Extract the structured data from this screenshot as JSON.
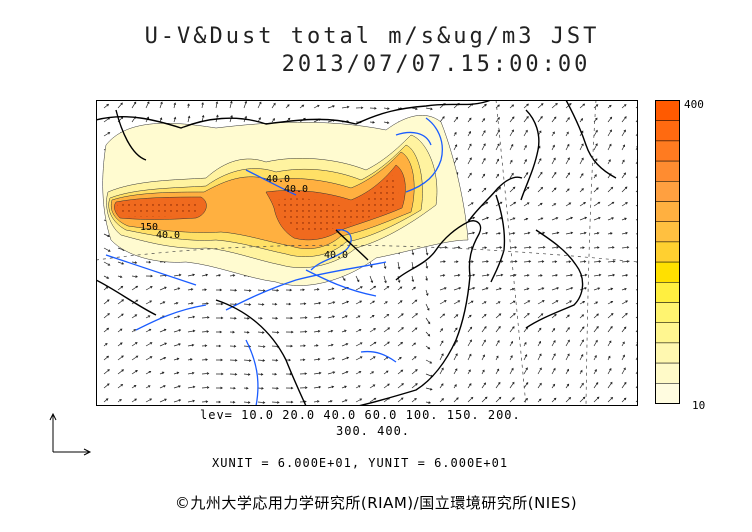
{
  "header": {
    "title_line1": "U-V&Dust total m/s&ug/m3 JST",
    "title_line2": "2013/07/07.15:00:00"
  },
  "colorbar": {
    "max_label": "400",
    "min_label": "10",
    "colors": [
      "#ff5a00",
      "#ff6a10",
      "#ff7b20",
      "#ff8c30",
      "#ffa040",
      "#ffb040",
      "#ffc040",
      "#ffd030",
      "#ffe000",
      "#ffef40",
      "#fff470",
      "#fff690",
      "#fff8b0",
      "#fffac8",
      "#fffce0"
    ]
  },
  "contour_labels": [
    "40.0",
    "40.0",
    "150",
    "40.0",
    "40.0"
  ],
  "levels": {
    "line1": "lev= 10.0 20.0 40.0 60.0 100. 150. 200.",
    "line2": "300. 400."
  },
  "units": {
    "xunit_label": "XUNIT = 6.000E+01, YUNIT = 6.000E+01"
  },
  "footer": {
    "credit": "©九州大学応用力学研究所(RIAM)/国立環境研究所(NIES)"
  }
}
